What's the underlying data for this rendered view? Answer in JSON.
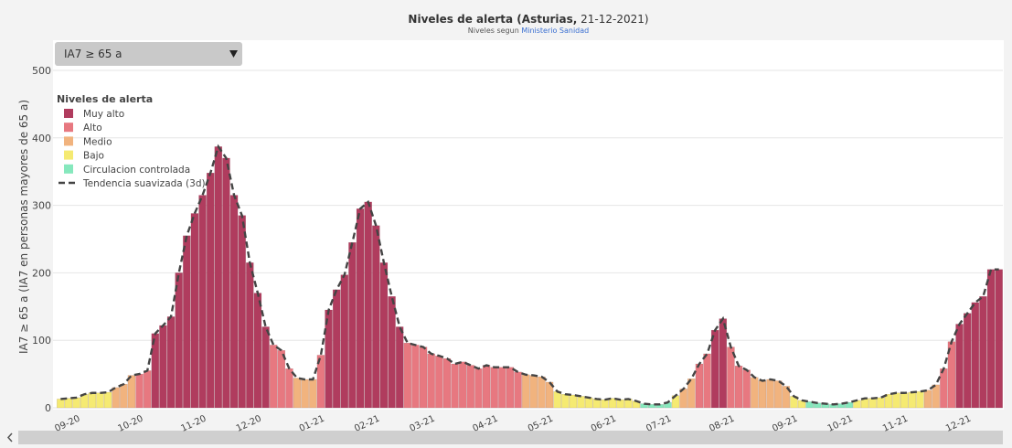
{
  "chart_data": {
    "type": "bar",
    "title": "Niveles de alerta (Asturias,",
    "title_date": "21-12-2021)",
    "subtitle": "Niveles segun",
    "subtitle_link": "Ministerio Sanidad",
    "selector": "IA7 ≥ 65 a",
    "y_label": "IA7 ≥ 65 a (IA7 en personas mayores de 65 a)",
    "legend_title": "Niveles de alerta",
    "legend": "upper-left",
    "grid": true,
    "ylim": [
      0,
      500
    ],
    "yticks": [
      0,
      100,
      200,
      300,
      400,
      500
    ],
    "categories": [
      null,
      "09-20",
      null,
      null,
      null,
      null,
      null,
      null,
      null,
      "10-20",
      null,
      null,
      null,
      null,
      null,
      null,
      null,
      "11-20",
      null,
      null,
      null,
      null,
      null,
      null,
      "12-20",
      null,
      null,
      null,
      null,
      null,
      null,
      null,
      "01-21",
      null,
      null,
      null,
      null,
      null,
      null,
      "02-21",
      null,
      null,
      null,
      null,
      null,
      null,
      "03-21",
      null,
      null,
      null,
      null,
      null,
      null,
      null,
      "04-21",
      null,
      null,
      null,
      null,
      null,
      null,
      "05-21",
      null,
      null,
      null,
      null,
      null,
      null,
      null,
      "06-21",
      null,
      null,
      null,
      null,
      null,
      null,
      "07-21",
      null,
      null,
      null,
      null,
      null,
      null,
      null,
      "08-21",
      null,
      null,
      null,
      null,
      null,
      null,
      null,
      "09-21",
      null,
      null,
      null,
      null,
      null,
      null,
      "10-21",
      null,
      null,
      null,
      null,
      null,
      null,
      "11-21",
      null,
      null,
      null,
      null,
      null,
      null,
      null,
      "12-21",
      null,
      null,
      null,
      null,
      null
    ],
    "series": [
      {
        "name": "Muy alto",
        "color": "#b03c5e",
        "values": [
          null,
          null,
          null,
          null,
          null,
          null,
          null,
          null,
          null,
          null,
          null,
          null,
          110,
          122,
          135,
          200,
          255,
          288,
          315,
          348,
          387,
          370,
          315,
          285,
          215,
          170,
          120,
          null,
          null,
          null,
          null,
          null,
          null,
          null,
          145,
          175,
          197,
          245,
          295,
          305,
          270,
          215,
          165,
          120,
          null,
          null,
          null,
          null,
          null,
          null,
          null,
          null,
          null,
          null,
          null,
          null,
          null,
          null,
          null,
          null,
          null,
          null,
          null,
          null,
          null,
          null,
          null,
          null,
          null,
          null,
          null,
          null,
          null,
          null,
          null,
          null,
          null,
          null,
          null,
          null,
          null,
          null,
          null,
          115,
          132,
          null,
          null,
          null,
          null,
          null,
          null,
          null,
          null,
          null,
          null,
          null,
          null,
          null,
          null,
          null,
          null,
          null,
          null,
          null,
          null,
          null,
          null,
          null,
          null,
          null,
          null,
          null,
          null,
          null,
          124,
          140,
          156,
          165,
          205,
          205
        ]
      },
      {
        "name": "Alto",
        "color": "#e77880",
        "values": [
          null,
          null,
          null,
          null,
          null,
          null,
          null,
          null,
          null,
          null,
          50,
          55,
          null,
          null,
          null,
          null,
          null,
          null,
          null,
          null,
          null,
          null,
          null,
          null,
          null,
          null,
          null,
          93,
          85,
          58,
          null,
          null,
          null,
          78,
          null,
          null,
          null,
          null,
          null,
          null,
          null,
          null,
          null,
          null,
          96,
          93,
          90,
          80,
          77,
          73,
          65,
          68,
          63,
          58,
          63,
          60,
          60,
          60,
          53,
          null,
          null,
          null,
          null,
          null,
          null,
          null,
          null,
          null,
          null,
          null,
          null,
          null,
          null,
          null,
          null,
          null,
          null,
          null,
          null,
          null,
          null,
          65,
          80,
          null,
          null,
          90,
          62,
          56,
          null,
          null,
          null,
          null,
          null,
          null,
          null,
          null,
          null,
          null,
          null,
          null,
          null,
          null,
          null,
          null,
          null,
          null,
          null,
          null,
          null,
          null,
          null,
          null,
          58,
          98,
          null,
          null,
          null,
          null,
          null,
          null
        ]
      },
      {
        "name": "Medio",
        "color": "#f1b37e",
        "values": [
          null,
          null,
          null,
          null,
          null,
          null,
          null,
          30,
          35,
          48,
          null,
          null,
          null,
          null,
          null,
          null,
          null,
          null,
          null,
          null,
          null,
          null,
          null,
          null,
          null,
          null,
          null,
          null,
          null,
          null,
          44,
          42,
          42,
          null,
          null,
          null,
          null,
          null,
          null,
          null,
          null,
          null,
          null,
          null,
          null,
          null,
          null,
          null,
          null,
          null,
          null,
          null,
          null,
          null,
          null,
          null,
          null,
          null,
          null,
          49,
          48,
          46,
          38,
          null,
          null,
          null,
          null,
          null,
          null,
          null,
          null,
          null,
          null,
          null,
          null,
          null,
          null,
          null,
          null,
          28,
          43,
          null,
          null,
          null,
          null,
          null,
          null,
          null,
          45,
          40,
          42,
          40,
          32,
          null,
          null,
          null,
          null,
          null,
          null,
          null,
          null,
          null,
          null,
          null,
          null,
          null,
          null,
          null,
          null,
          null,
          26,
          34,
          null,
          null,
          null,
          null,
          null,
          null,
          null,
          null
        ]
      },
      {
        "name": "Bajo",
        "color": "#f5ea72",
        "values": [
          13,
          14,
          15,
          20,
          22,
          22,
          23,
          null,
          null,
          null,
          null,
          null,
          null,
          null,
          null,
          null,
          null,
          null,
          null,
          null,
          null,
          null,
          null,
          null,
          null,
          null,
          null,
          null,
          null,
          null,
          null,
          null,
          null,
          null,
          null,
          null,
          null,
          null,
          null,
          null,
          null,
          null,
          null,
          null,
          null,
          null,
          null,
          null,
          null,
          null,
          null,
          null,
          null,
          null,
          null,
          null,
          null,
          null,
          null,
          null,
          null,
          null,
          null,
          24,
          20,
          19,
          17,
          15,
          13,
          12,
          14,
          12,
          13,
          10,
          null,
          null,
          null,
          null,
          18,
          null,
          null,
          null,
          null,
          null,
          null,
          null,
          null,
          null,
          null,
          null,
          null,
          null,
          null,
          17,
          11,
          null,
          null,
          null,
          null,
          null,
          null,
          11,
          14,
          14,
          15,
          20,
          22,
          22,
          23,
          24,
          null,
          null,
          null,
          null,
          null,
          null,
          null,
          null,
          null,
          null
        ]
      },
      {
        "name": "Circulacion controlada",
        "color": "#86e8bd",
        "values": [
          null,
          null,
          null,
          null,
          null,
          null,
          null,
          null,
          null,
          null,
          null,
          null,
          null,
          null,
          null,
          null,
          null,
          null,
          null,
          null,
          null,
          null,
          null,
          null,
          null,
          null,
          null,
          null,
          null,
          null,
          null,
          null,
          null,
          null,
          null,
          null,
          null,
          null,
          null,
          null,
          null,
          null,
          null,
          null,
          null,
          null,
          null,
          null,
          null,
          null,
          null,
          null,
          null,
          null,
          null,
          null,
          null,
          null,
          null,
          null,
          null,
          null,
          null,
          null,
          null,
          null,
          null,
          null,
          null,
          null,
          null,
          null,
          null,
          null,
          6,
          5,
          5,
          8,
          null,
          null,
          null,
          null,
          null,
          null,
          null,
          null,
          null,
          null,
          null,
          null,
          null,
          null,
          null,
          null,
          null,
          9,
          7,
          6,
          5,
          6,
          8,
          null,
          null,
          null,
          null,
          null,
          null,
          null,
          null,
          null,
          null,
          null,
          null,
          null,
          null,
          null,
          null,
          null,
          null,
          null
        ]
      },
      {
        "name": "Tendencia suavizada (3d)",
        "type": "line",
        "color": "#444444",
        "values": [
          13,
          14,
          15,
          20,
          22,
          22,
          23,
          30,
          35,
          48,
          50,
          55,
          110,
          122,
          135,
          200,
          255,
          288,
          315,
          348,
          387,
          370,
          315,
          285,
          215,
          170,
          120,
          93,
          85,
          58,
          44,
          42,
          42,
          78,
          145,
          175,
          197,
          245,
          295,
          305,
          270,
          215,
          165,
          120,
          96,
          93,
          90,
          80,
          77,
          73,
          65,
          68,
          63,
          58,
          63,
          60,
          60,
          60,
          53,
          49,
          48,
          46,
          38,
          24,
          20,
          19,
          17,
          15,
          13,
          12,
          14,
          12,
          13,
          10,
          6,
          5,
          5,
          8,
          18,
          28,
          43,
          65,
          80,
          115,
          132,
          90,
          62,
          56,
          45,
          40,
          42,
          40,
          32,
          17,
          11,
          9,
          7,
          6,
          5,
          6,
          8,
          11,
          14,
          14,
          15,
          20,
          22,
          22,
          23,
          24,
          26,
          34,
          58,
          98,
          124,
          140,
          156,
          165,
          205,
          205
        ]
      }
    ]
  }
}
